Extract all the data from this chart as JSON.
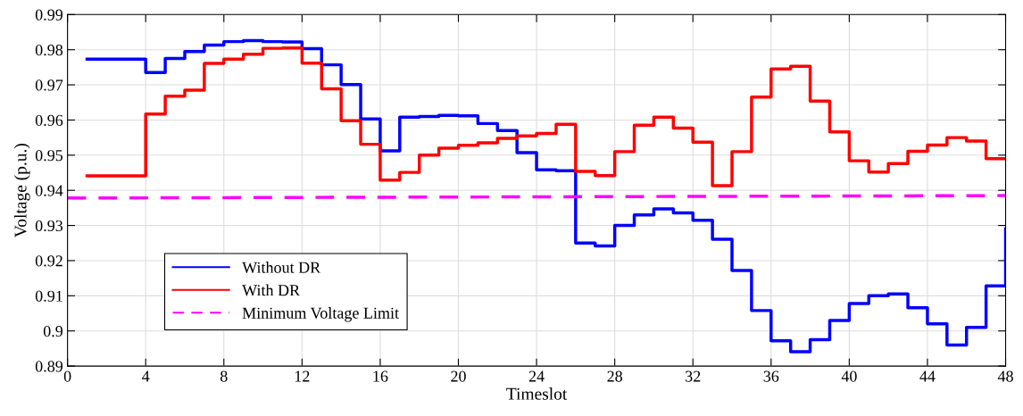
{
  "chart_data": {
    "type": "step",
    "xlabel": "Timeslot",
    "ylabel": "Voltage (p.u.)",
    "xlim": [
      0,
      48
    ],
    "xticks": [
      0,
      4,
      8,
      12,
      16,
      20,
      24,
      28,
      32,
      36,
      40,
      44,
      48
    ],
    "ylim": [
      0.89,
      0.99
    ],
    "yticks": [
      0.89,
      0.9,
      0.91,
      0.92,
      0.93,
      0.94,
      0.95,
      0.96,
      0.97,
      0.98,
      0.99
    ],
    "grid": true,
    "legend": "bottom left",
    "line_style": "solid",
    "x": [
      1,
      2,
      3,
      4,
      5,
      6,
      7,
      8,
      9,
      10,
      11,
      12,
      13,
      14,
      15,
      16,
      17,
      18,
      19,
      20,
      21,
      22,
      23,
      24,
      25,
      26,
      27,
      28,
      29,
      30,
      31,
      32,
      33,
      34,
      35,
      36,
      37,
      38,
      39,
      40,
      41,
      42,
      43,
      44,
      45,
      46,
      47,
      48
    ],
    "series": [
      {
        "name": "Without DR",
        "color": "#0000ff",
        "values": [
          0.9773,
          0.9773,
          0.9773,
          0.9735,
          0.9775,
          0.9795,
          0.9813,
          0.9823,
          0.9826,
          0.9823,
          0.9822,
          0.9803,
          0.9757,
          0.9701,
          0.9603,
          0.9512,
          0.9608,
          0.961,
          0.9613,
          0.9612,
          0.959,
          0.957,
          0.9507,
          0.9458,
          0.9456,
          0.925,
          0.9242,
          0.93,
          0.933,
          0.9347,
          0.9336,
          0.9315,
          0.9261,
          0.9172,
          0.9058,
          0.8972,
          0.8941,
          0.8975,
          0.903,
          0.9078,
          0.91,
          0.9105,
          0.9066,
          0.902,
          0.896,
          0.901,
          0.9128,
          0.929
        ]
      },
      {
        "name": "With DR",
        "color": "#ff0000",
        "values": [
          0.9441,
          0.9441,
          0.9441,
          0.9617,
          0.9668,
          0.9685,
          0.9761,
          0.9773,
          0.9787,
          0.9804,
          0.9805,
          0.9762,
          0.9689,
          0.9598,
          0.9531,
          0.9429,
          0.9451,
          0.95,
          0.952,
          0.9528,
          0.9535,
          0.9548,
          0.9555,
          0.9562,
          0.9588,
          0.9454,
          0.9442,
          0.951,
          0.9585,
          0.9608,
          0.9577,
          0.9537,
          0.9413,
          0.951,
          0.9665,
          0.9745,
          0.9753,
          0.9654,
          0.9566,
          0.9484,
          0.9452,
          0.9476,
          0.9511,
          0.9529,
          0.955,
          0.954,
          0.949,
          0.949
        ]
      },
      {
        "name": "Minimum Voltage Limit",
        "type": "line",
        "line_style": "dashed",
        "color": "#ff00ff",
        "x": [
          0,
          48
        ],
        "values": [
          0.9378,
          0.9385
        ]
      }
    ]
  }
}
